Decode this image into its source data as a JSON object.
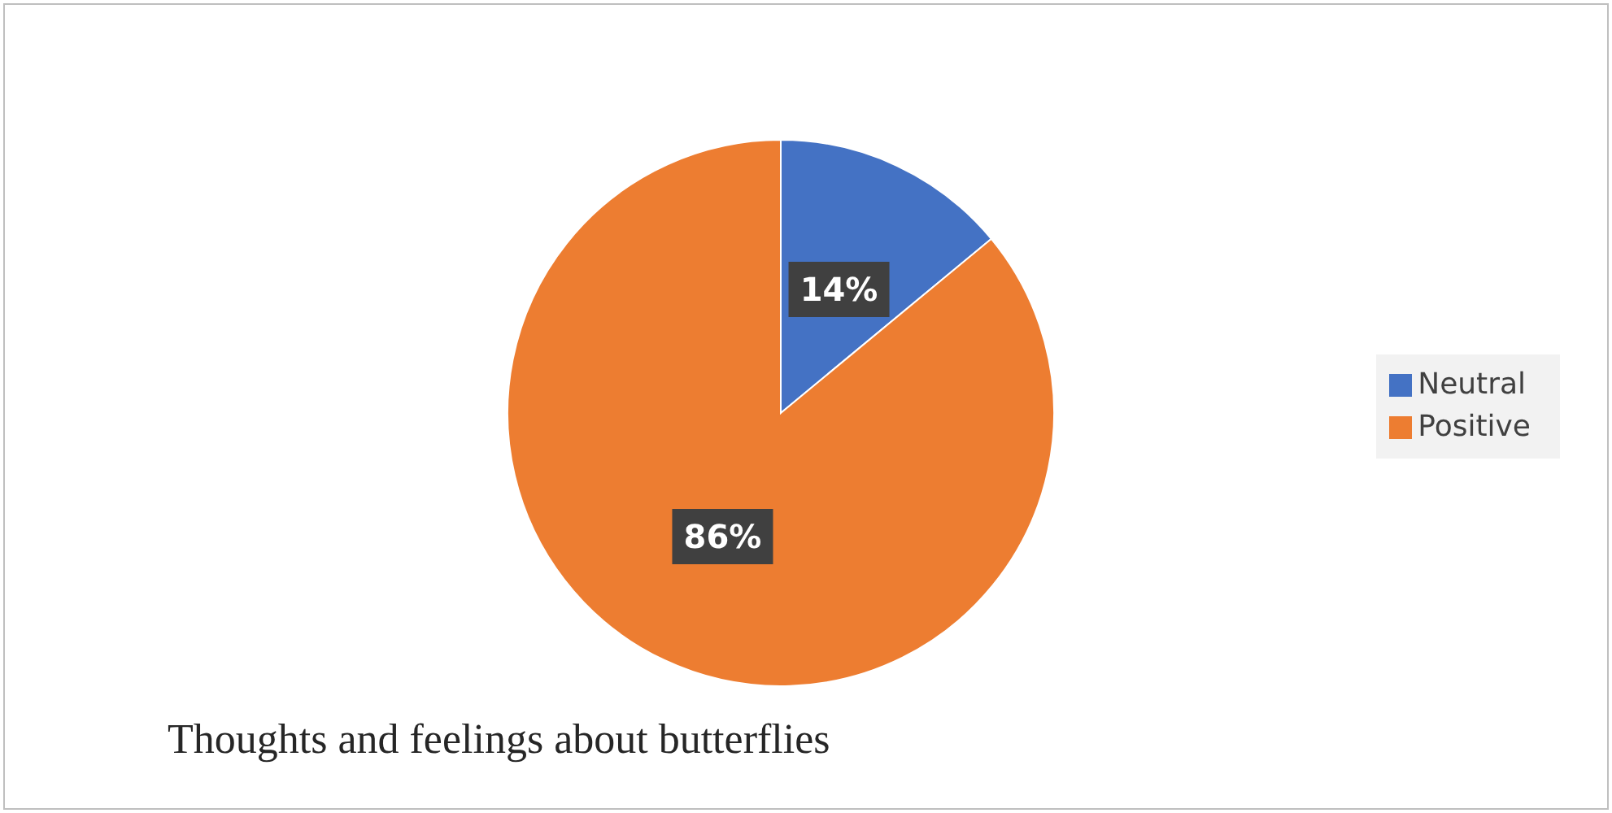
{
  "chart_data": {
    "type": "pie",
    "title": "Thoughts and feelings about butterflies",
    "categories": [
      "Neutral",
      "Positive"
    ],
    "values": [
      14,
      86
    ],
    "value_labels": [
      "14%",
      "86%"
    ],
    "colors": [
      "#4472c4",
      "#ed7d31"
    ],
    "legend": "right"
  }
}
